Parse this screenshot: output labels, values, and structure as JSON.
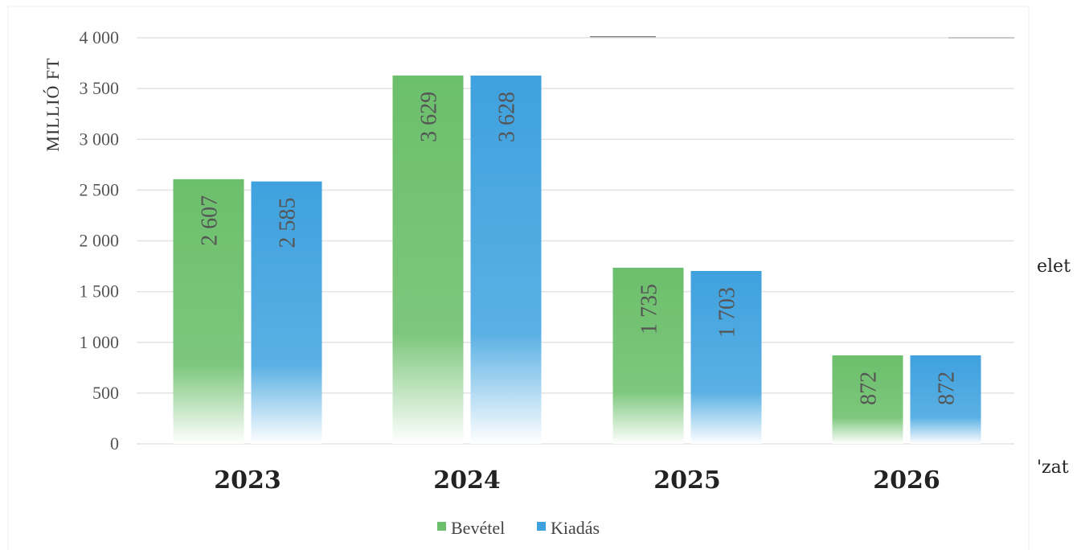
{
  "chart_data": {
    "type": "bar",
    "title": "",
    "ylabel": "MILLIÓ FT",
    "xlabel": "",
    "categories": [
      "2023",
      "2024",
      "2025",
      "2026"
    ],
    "series": [
      {
        "name": "Bevétel",
        "values": [
          2607,
          3629,
          1735,
          872
        ],
        "labels": [
          "2 607",
          "3 629",
          "1 735",
          "872"
        ]
      },
      {
        "name": "Kiadás",
        "values": [
          2585,
          3628,
          1703,
          872
        ],
        "labels": [
          "2 585",
          "3 628",
          "1 703",
          "872"
        ]
      }
    ],
    "ylim": [
      0,
      4000
    ],
    "yticks": [
      0,
      500,
      1000,
      1500,
      2000,
      2500,
      3000,
      3500,
      4000
    ],
    "ytick_labels": [
      "0",
      "500",
      "1 000",
      "1 500",
      "2 000",
      "2 500",
      "3 000",
      "3 500",
      "4 000"
    ],
    "grid": true,
    "legend": "bottom-center",
    "colors": {
      "Bevétel": "#6cbf6c",
      "Kiadás": "#3fa1de"
    }
  },
  "edge_fragments": [
    "elet",
    "'zat"
  ]
}
